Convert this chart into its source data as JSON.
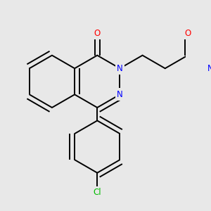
{
  "bg_color": "#e8e8e8",
  "bond_color": "#000000",
  "atom_colors": {
    "O": "#ff0000",
    "N": "#0000ff",
    "Cl": "#00bb00",
    "C": "#000000"
  },
  "font_size": 8.5,
  "figsize": [
    3.0,
    3.0
  ],
  "dpi": 100,
  "lw": 1.4,
  "doff": 0.035
}
